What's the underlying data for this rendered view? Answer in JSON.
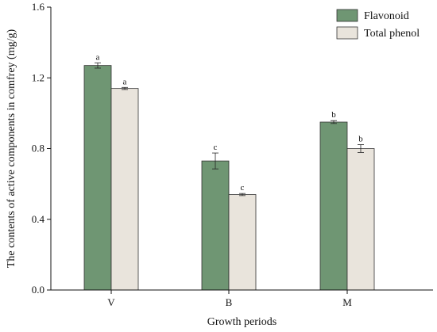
{
  "chart_data": {
    "type": "bar",
    "title": "",
    "xlabel": "Growth periods",
    "ylabel": "The contents of active components in comfrey (mg/g)",
    "categories": [
      "V",
      "B",
      "M"
    ],
    "ylim": [
      0,
      1.6
    ],
    "yticks": [
      "0.0",
      "0.4",
      "0.8",
      "1.2",
      "1.6"
    ],
    "grid": false,
    "legend_position": "top-right",
    "series": [
      {
        "name": "Flavonoid",
        "color": "#6f9673",
        "values": [
          1.27,
          0.73,
          0.95
        ],
        "errors": [
          0.015,
          0.045,
          0.008
        ],
        "labels": [
          "a",
          "c",
          "b"
        ]
      },
      {
        "name": "Total phenol",
        "color": "#e9e4dc",
        "values": [
          1.14,
          0.54,
          0.8
        ],
        "errors": [
          0.006,
          0.006,
          0.022
        ],
        "labels": [
          "a",
          "c",
          "b"
        ]
      }
    ]
  }
}
